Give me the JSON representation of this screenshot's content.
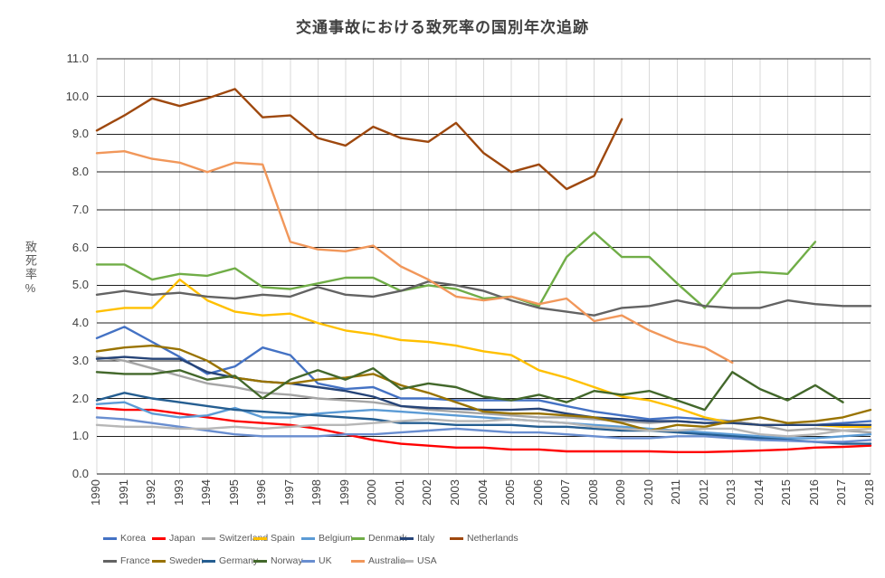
{
  "chart_data": {
    "type": "line",
    "title": "交通事故における致死率の国別年次追跡",
    "ylabel": "致死率%",
    "xlabel": "",
    "ylim": [
      0,
      11
    ],
    "ytick_step": 1.0,
    "grid": {
      "horizontal": true,
      "vertical": true,
      "h_color": "#1F1F1F",
      "v_color": "#D9D9D9"
    },
    "legend_position": "bottom",
    "legend_rows": [
      [
        "Korea",
        "Japan",
        "Switzerland",
        "Spain",
        "Belgium",
        "Denmark",
        "Italy",
        "Netherlands"
      ],
      [
        "France",
        "Sweden",
        "Germany",
        "Norway",
        "UK",
        "Australia",
        "USA"
      ]
    ],
    "x": [
      "1990",
      "1991",
      "1992",
      "1993",
      "1994",
      "1995",
      "1996",
      "1997",
      "1998",
      "1999",
      "2000",
      "2001",
      "2002",
      "2003",
      "2004",
      "2005",
      "2006",
      "2007",
      "2008",
      "2009",
      "2010",
      "2011",
      "2012",
      "2013",
      "2014",
      "2015",
      "2016",
      "2017",
      "2018"
    ],
    "series": [
      {
        "name": "Korea",
        "color": "#4472C4",
        "values": [
          3.6,
          3.9,
          3.5,
          3.1,
          2.65,
          2.85,
          3.35,
          3.15,
          2.4,
          2.25,
          2.3,
          2.0,
          2.0,
          1.95,
          1.95,
          1.95,
          1.95,
          1.8,
          1.65,
          1.55,
          1.45,
          1.5,
          1.45,
          1.4,
          1.3,
          1.3,
          1.3,
          1.35,
          1.4
        ]
      },
      {
        "name": "Japan",
        "color": "#FF0000",
        "values": [
          1.75,
          1.7,
          1.7,
          1.6,
          1.5,
          1.4,
          1.35,
          1.3,
          1.2,
          1.05,
          0.9,
          0.8,
          0.75,
          0.7,
          0.7,
          0.65,
          0.65,
          0.6,
          0.6,
          0.6,
          0.6,
          0.58,
          0.58,
          0.6,
          0.62,
          0.65,
          0.7,
          0.72,
          0.75
        ]
      },
      {
        "name": "Switzerland",
        "color": "#A5A5A5",
        "values": [
          3.1,
          3.0,
          2.8,
          2.6,
          2.4,
          2.3,
          2.15,
          2.1,
          2.0,
          1.95,
          1.9,
          1.8,
          1.7,
          1.65,
          1.6,
          1.55,
          1.5,
          1.5,
          1.45,
          1.4,
          1.35,
          1.4,
          1.35,
          1.4,
          1.3,
          1.15,
          1.2,
          1.15,
          1.1
        ]
      },
      {
        "name": "Spain",
        "color": "#FFC000",
        "values": [
          4.3,
          4.4,
          4.4,
          5.15,
          4.6,
          4.3,
          4.2,
          4.25,
          4.0,
          3.8,
          3.7,
          3.55,
          3.5,
          3.4,
          3.25,
          3.15,
          2.75,
          2.55,
          2.3,
          2.05,
          1.95,
          1.75,
          1.5,
          1.35,
          1.3,
          1.3,
          1.3,
          1.25,
          1.25
        ]
      },
      {
        "name": "Belgium",
        "color": "#5B9BD5",
        "values": [
          1.85,
          1.9,
          1.6,
          1.5,
          1.55,
          1.75,
          1.5,
          1.5,
          1.6,
          1.65,
          1.7,
          1.65,
          1.6,
          1.55,
          1.5,
          1.45,
          1.4,
          1.35,
          1.3,
          1.25,
          1.2,
          1.15,
          1.1,
          1.05,
          1.0,
          0.95,
          0.95,
          1.0,
          1.05
        ]
      },
      {
        "name": "Denmark",
        "color": "#70AD47",
        "values": [
          5.55,
          5.55,
          5.15,
          5.3,
          5.25,
          5.45,
          4.95,
          4.9,
          5.05,
          5.2,
          5.2,
          4.85,
          5.0,
          4.9,
          4.65,
          4.7,
          4.45,
          5.75,
          6.4,
          5.75,
          5.75,
          5.05,
          4.4,
          5.3,
          5.35,
          5.3,
          6.15,
          null,
          null
        ]
      },
      {
        "name": "Italy",
        "color": "#264478",
        "values": [
          3.05,
          3.1,
          3.05,
          3.05,
          2.7,
          2.55,
          2.45,
          2.4,
          2.3,
          2.2,
          2.05,
          1.8,
          1.75,
          1.73,
          1.7,
          1.7,
          1.73,
          1.6,
          1.5,
          1.45,
          1.4,
          1.4,
          1.35,
          1.35,
          1.3,
          1.3,
          1.3,
          1.3,
          1.3
        ]
      },
      {
        "name": "Netherlands",
        "color": "#9E480E",
        "values": [
          9.1,
          9.5,
          9.95,
          9.75,
          9.95,
          10.2,
          9.45,
          9.5,
          8.9,
          8.7,
          9.2,
          8.9,
          8.8,
          9.3,
          8.5,
          8.0,
          8.2,
          7.55,
          7.9,
          9.4,
          null,
          null,
          null,
          null,
          null,
          null,
          null,
          null,
          null
        ]
      },
      {
        "name": "France",
        "color": "#636363",
        "values": [
          4.75,
          4.85,
          4.75,
          4.8,
          4.7,
          4.65,
          4.75,
          4.7,
          4.95,
          4.75,
          4.7,
          4.85,
          5.1,
          5.0,
          4.85,
          4.6,
          4.4,
          4.3,
          4.2,
          4.4,
          4.45,
          4.6,
          4.45,
          4.4,
          4.4,
          4.6,
          4.5,
          4.45,
          4.45
        ]
      },
      {
        "name": "Sweden",
        "color": "#997300",
        "values": [
          3.25,
          3.35,
          3.4,
          3.3,
          3.0,
          2.55,
          2.45,
          2.4,
          2.5,
          2.55,
          2.65,
          2.35,
          2.15,
          1.9,
          1.65,
          1.6,
          1.6,
          1.55,
          1.5,
          1.35,
          1.15,
          1.3,
          1.25,
          1.4,
          1.5,
          1.35,
          1.4,
          1.5,
          1.7
        ]
      },
      {
        "name": "Germany",
        "color": "#255E91",
        "values": [
          1.95,
          2.15,
          2.0,
          1.9,
          1.8,
          1.7,
          1.65,
          1.6,
          1.55,
          1.5,
          1.45,
          1.35,
          1.35,
          1.3,
          1.3,
          1.3,
          1.25,
          1.25,
          1.2,
          1.15,
          1.15,
          1.1,
          1.05,
          1.0,
          0.95,
          0.9,
          0.85,
          0.8,
          0.8
        ]
      },
      {
        "name": "Norway",
        "color": "#43682B",
        "values": [
          2.7,
          2.65,
          2.65,
          2.75,
          2.5,
          2.6,
          2.0,
          2.5,
          2.75,
          2.5,
          2.8,
          2.25,
          2.4,
          2.3,
          2.05,
          1.95,
          2.1,
          1.9,
          2.2,
          2.1,
          2.2,
          1.95,
          1.7,
          2.7,
          2.25,
          1.95,
          2.35,
          1.9,
          null
        ]
      },
      {
        "name": "UK",
        "color": "#698ED0",
        "values": [
          1.5,
          1.45,
          1.35,
          1.25,
          1.15,
          1.05,
          1.0,
          1.0,
          1.0,
          1.05,
          1.05,
          1.1,
          1.15,
          1.2,
          1.15,
          1.1,
          1.1,
          1.05,
          1.0,
          0.95,
          0.95,
          1.0,
          1.0,
          0.95,
          0.9,
          0.88,
          0.85,
          0.85,
          0.9
        ]
      },
      {
        "name": "Australia",
        "color": "#F1975A",
        "values": [
          8.5,
          8.55,
          8.35,
          8.25,
          8.0,
          8.25,
          8.2,
          6.15,
          5.95,
          5.9,
          6.05,
          5.5,
          5.15,
          4.7,
          4.6,
          4.7,
          4.5,
          4.65,
          4.05,
          4.2,
          3.8,
          3.5,
          3.35,
          2.95,
          null,
          null,
          null,
          null,
          null
        ]
      },
      {
        "name": "USA",
        "color": "#B7B7B7",
        "values": [
          1.3,
          1.25,
          1.25,
          1.2,
          1.2,
          1.25,
          1.2,
          1.25,
          1.3,
          1.3,
          1.35,
          1.4,
          1.45,
          1.4,
          1.4,
          1.45,
          1.4,
          1.35,
          1.25,
          1.2,
          1.15,
          1.15,
          1.2,
          1.2,
          1.05,
          1.0,
          1.05,
          1.15,
          1.2
        ]
      }
    ]
  }
}
